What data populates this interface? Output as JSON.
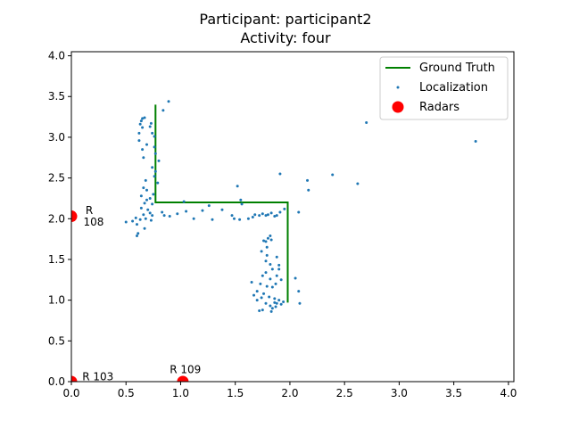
{
  "chart_data": {
    "type": "scatter",
    "title": "Participant: participant2",
    "subtitle": "Activity: four",
    "xlabel": "",
    "ylabel": "",
    "xlim": [
      0.0,
      4.05
    ],
    "ylim": [
      0.0,
      4.05
    ],
    "x_ticks": [
      "0.0",
      "0.5",
      "1.0",
      "1.5",
      "2.0",
      "2.5",
      "3.0",
      "3.5",
      "4.0"
    ],
    "y_ticks": [
      "0.0",
      "0.5",
      "1.0",
      "1.5",
      "2.0",
      "2.5",
      "3.0",
      "3.5",
      "4.0"
    ],
    "x_tick_values": [
      0.0,
      0.5,
      1.0,
      1.5,
      2.0,
      2.5,
      3.0,
      3.5,
      4.0
    ],
    "y_tick_values": [
      0.0,
      0.5,
      1.0,
      1.5,
      2.0,
      2.5,
      3.0,
      3.5,
      4.0
    ],
    "grid": false,
    "legend_position": "top-right",
    "colors": {
      "ground_truth": "#008000",
      "localization": "#1f77b4",
      "radars": "#ff0000"
    },
    "legend": [
      {
        "label": "Ground Truth",
        "kind": "line",
        "color": "#008000"
      },
      {
        "label": "Localization",
        "kind": "small-dot",
        "color": "#1f77b4"
      },
      {
        "label": "Radars",
        "kind": "big-dot",
        "color": "#ff0000"
      }
    ],
    "series": [
      {
        "name": "Ground Truth",
        "kind": "line",
        "points": [
          [
            0.77,
            3.4
          ],
          [
            0.77,
            2.2
          ],
          [
            1.98,
            2.2
          ],
          [
            1.98,
            0.97
          ]
        ]
      },
      {
        "name": "Localization",
        "kind": "scatter",
        "points": [
          [
            0.89,
            3.44
          ],
          [
            0.84,
            3.33
          ],
          [
            0.65,
            3.23
          ],
          [
            0.67,
            3.24
          ],
          [
            0.64,
            3.2
          ],
          [
            0.63,
            3.16
          ],
          [
            0.73,
            3.17
          ],
          [
            0.65,
            3.12
          ],
          [
            0.72,
            3.13
          ],
          [
            0.62,
            3.05
          ],
          [
            0.74,
            3.05
          ],
          [
            0.76,
            3.01
          ],
          [
            0.62,
            2.96
          ],
          [
            0.69,
            2.91
          ],
          [
            0.76,
            2.88
          ],
          [
            0.65,
            2.85
          ],
          [
            0.77,
            2.8
          ],
          [
            0.66,
            2.75
          ],
          [
            0.8,
            2.71
          ],
          [
            0.74,
            2.63
          ],
          [
            0.77,
            2.58
          ],
          [
            0.76,
            2.52
          ],
          [
            0.68,
            2.47
          ],
          [
            0.79,
            2.44
          ],
          [
            0.66,
            2.38
          ],
          [
            0.69,
            2.35
          ],
          [
            0.64,
            2.28
          ],
          [
            0.75,
            2.3
          ],
          [
            0.69,
            2.23
          ],
          [
            0.72,
            2.25
          ],
          [
            0.67,
            2.19
          ],
          [
            0.74,
            2.18
          ],
          [
            0.64,
            2.13
          ],
          [
            0.7,
            2.11
          ],
          [
            0.72,
            2.07
          ],
          [
            0.66,
            2.05
          ],
          [
            0.74,
            2.04
          ],
          [
            0.68,
            2.0
          ],
          [
            0.63,
            1.99
          ],
          [
            0.73,
            1.98
          ],
          [
            0.59,
            2.01
          ],
          [
            0.6,
            1.93
          ],
          [
            0.56,
            1.97
          ],
          [
            0.5,
            1.96
          ],
          [
            0.6,
            1.79
          ],
          [
            0.61,
            1.82
          ],
          [
            0.67,
            1.88
          ],
          [
            0.83,
            2.08
          ],
          [
            0.85,
            2.04
          ],
          [
            0.9,
            2.03
          ],
          [
            0.97,
            2.06
          ],
          [
            1.03,
            2.21
          ],
          [
            1.05,
            2.09
          ],
          [
            1.12,
            2.0
          ],
          [
            1.2,
            2.1
          ],
          [
            1.26,
            2.16
          ],
          [
            1.29,
            1.99
          ],
          [
            1.38,
            2.11
          ],
          [
            1.47,
            2.04
          ],
          [
            1.49,
            2.0
          ],
          [
            1.52,
            2.4
          ],
          [
            1.55,
            2.23
          ],
          [
            1.56,
            2.18
          ],
          [
            1.54,
            1.99
          ],
          [
            1.62,
            2.0
          ],
          [
            1.66,
            2.02
          ],
          [
            1.68,
            2.05
          ],
          [
            1.72,
            2.04
          ],
          [
            1.75,
            2.06
          ],
          [
            1.78,
            2.04
          ],
          [
            1.8,
            2.05
          ],
          [
            1.83,
            2.07
          ],
          [
            1.86,
            2.03
          ],
          [
            1.88,
            2.04
          ],
          [
            1.91,
            2.08
          ],
          [
            1.91,
            2.55
          ],
          [
            1.95,
            2.12
          ],
          [
            2.16,
            2.47
          ],
          [
            2.17,
            2.35
          ],
          [
            2.08,
            2.08
          ],
          [
            2.39,
            2.54
          ],
          [
            2.62,
            2.43
          ],
          [
            2.7,
            3.18
          ],
          [
            3.7,
            2.95
          ],
          [
            1.82,
            1.79
          ],
          [
            1.8,
            1.76
          ],
          [
            1.83,
            1.74
          ],
          [
            1.78,
            1.72
          ],
          [
            1.76,
            1.73
          ],
          [
            1.79,
            1.65
          ],
          [
            1.74,
            1.6
          ],
          [
            1.79,
            1.55
          ],
          [
            1.78,
            1.48
          ],
          [
            1.88,
            1.53
          ],
          [
            1.9,
            1.43
          ],
          [
            1.9,
            1.38
          ],
          [
            1.82,
            1.44
          ],
          [
            1.84,
            1.38
          ],
          [
            1.78,
            1.34
          ],
          [
            1.88,
            1.3
          ],
          [
            1.82,
            1.26
          ],
          [
            1.75,
            1.3
          ],
          [
            1.73,
            1.2
          ],
          [
            1.79,
            1.17
          ],
          [
            1.84,
            1.16
          ],
          [
            1.87,
            1.2
          ],
          [
            1.92,
            1.25
          ],
          [
            1.7,
            1.11
          ],
          [
            1.76,
            1.08
          ],
          [
            1.81,
            1.04
          ],
          [
            1.74,
            1.03
          ],
          [
            1.86,
            1.02
          ],
          [
            1.7,
            1.0
          ],
          [
            1.78,
            0.96
          ],
          [
            1.82,
            0.93
          ],
          [
            1.92,
            0.95
          ],
          [
            1.94,
            0.98
          ],
          [
            1.9,
            1.0
          ],
          [
            1.84,
            0.9
          ],
          [
            1.75,
            0.88
          ],
          [
            1.72,
            0.87
          ],
          [
            1.83,
            0.86
          ],
          [
            1.86,
            0.97
          ],
          [
            2.05,
            1.27
          ],
          [
            2.08,
            1.11
          ],
          [
            2.09,
            0.96
          ],
          [
            1.65,
            1.22
          ],
          [
            1.67,
            1.06
          ],
          [
            1.87,
            0.92
          ],
          [
            1.88,
            0.96
          ]
        ]
      },
      {
        "name": "Radars",
        "kind": "scatter",
        "points": [
          [
            0.0,
            2.03
          ],
          [
            0.0,
            0.0
          ],
          [
            1.02,
            0.0
          ]
        ]
      }
    ],
    "annotations": [
      {
        "text": "R",
        "x": 0.13,
        "y": 2.1
      },
      {
        "text": "108",
        "x": 0.11,
        "y": 1.96
      },
      {
        "text": "R 103",
        "x": 0.1,
        "y": 0.06
      },
      {
        "text": "R 109",
        "x": 0.9,
        "y": 0.15
      }
    ]
  }
}
